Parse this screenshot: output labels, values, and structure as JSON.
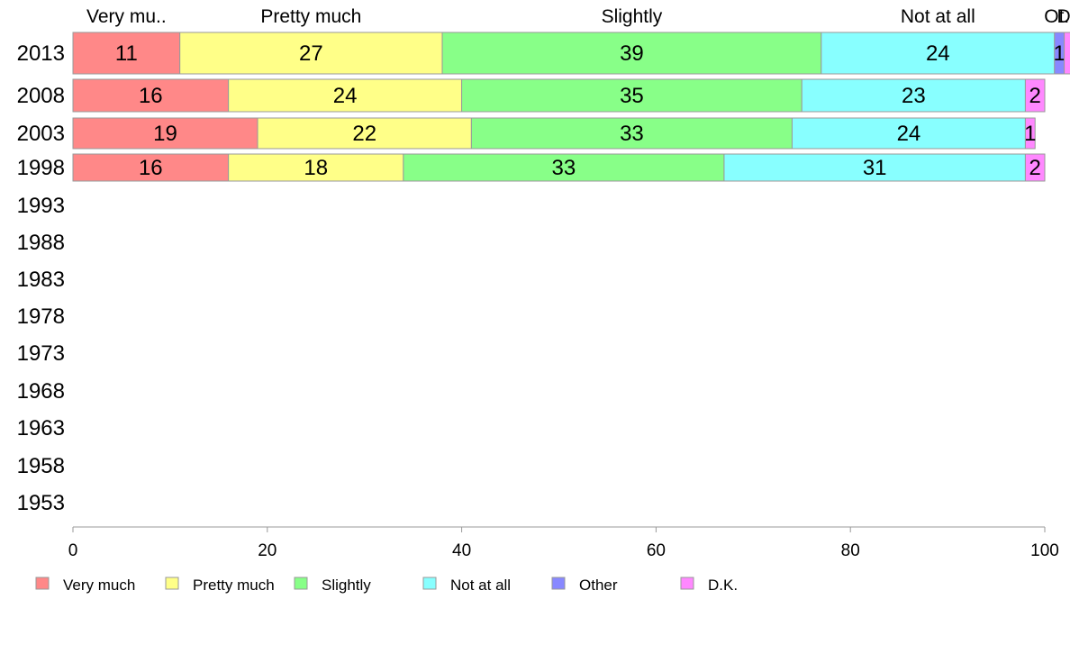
{
  "chart_data": {
    "type": "bar",
    "orientation": "horizontal",
    "stacked": true,
    "categories": [
      "2013",
      "2008",
      "2003",
      "1998",
      "1993",
      "1988",
      "1983",
      "1978",
      "1973",
      "1968",
      "1963",
      "1958",
      "1953"
    ],
    "series": [
      {
        "name": "Very much",
        "color": "#ff8888",
        "values": [
          11,
          16,
          19,
          16,
          null,
          null,
          null,
          null,
          null,
          null,
          null,
          null,
          null
        ]
      },
      {
        "name": "Pretty much",
        "color": "#ffff88",
        "values": [
          27,
          24,
          22,
          18,
          null,
          null,
          null,
          null,
          null,
          null,
          null,
          null,
          null
        ]
      },
      {
        "name": "Slightly",
        "color": "#88ff88",
        "values": [
          39,
          35,
          33,
          33,
          null,
          null,
          null,
          null,
          null,
          null,
          null,
          null,
          null
        ]
      },
      {
        "name": "Not at all",
        "color": "#88ffff",
        "values": [
          24,
          23,
          24,
          31,
          null,
          null,
          null,
          null,
          null,
          null,
          null,
          null,
          null
        ]
      },
      {
        "name": "Other",
        "color": "#8888ff",
        "values": [
          1,
          0,
          0,
          0,
          null,
          null,
          null,
          null,
          null,
          null,
          null,
          null,
          null
        ]
      },
      {
        "name": "D.K.",
        "color": "#ff88ff",
        "values": [
          1,
          2,
          1,
          2,
          null,
          null,
          null,
          null,
          null,
          null,
          null,
          null,
          null
        ]
      }
    ],
    "data_labels": [
      [
        "11",
        "27",
        "39",
        "24",
        "1",
        ""
      ],
      [
        "16",
        "24",
        "35",
        "23",
        "",
        "2"
      ],
      [
        "19",
        "22",
        "33",
        "24",
        "",
        "1"
      ],
      [
        "16",
        "18",
        "33",
        "31",
        "",
        "2"
      ]
    ],
    "top_labels": [
      "Very mu..",
      "Pretty much",
      "Slightly",
      "Not at all",
      "Ot..",
      "D.."
    ],
    "xlim": [
      0,
      100
    ],
    "xticks": [
      0,
      20,
      40,
      60,
      80,
      100
    ],
    "tick_labels": [
      "0",
      "20",
      "40",
      "60",
      "80",
      "100"
    ],
    "grid": false,
    "legend_position": "bottom"
  }
}
